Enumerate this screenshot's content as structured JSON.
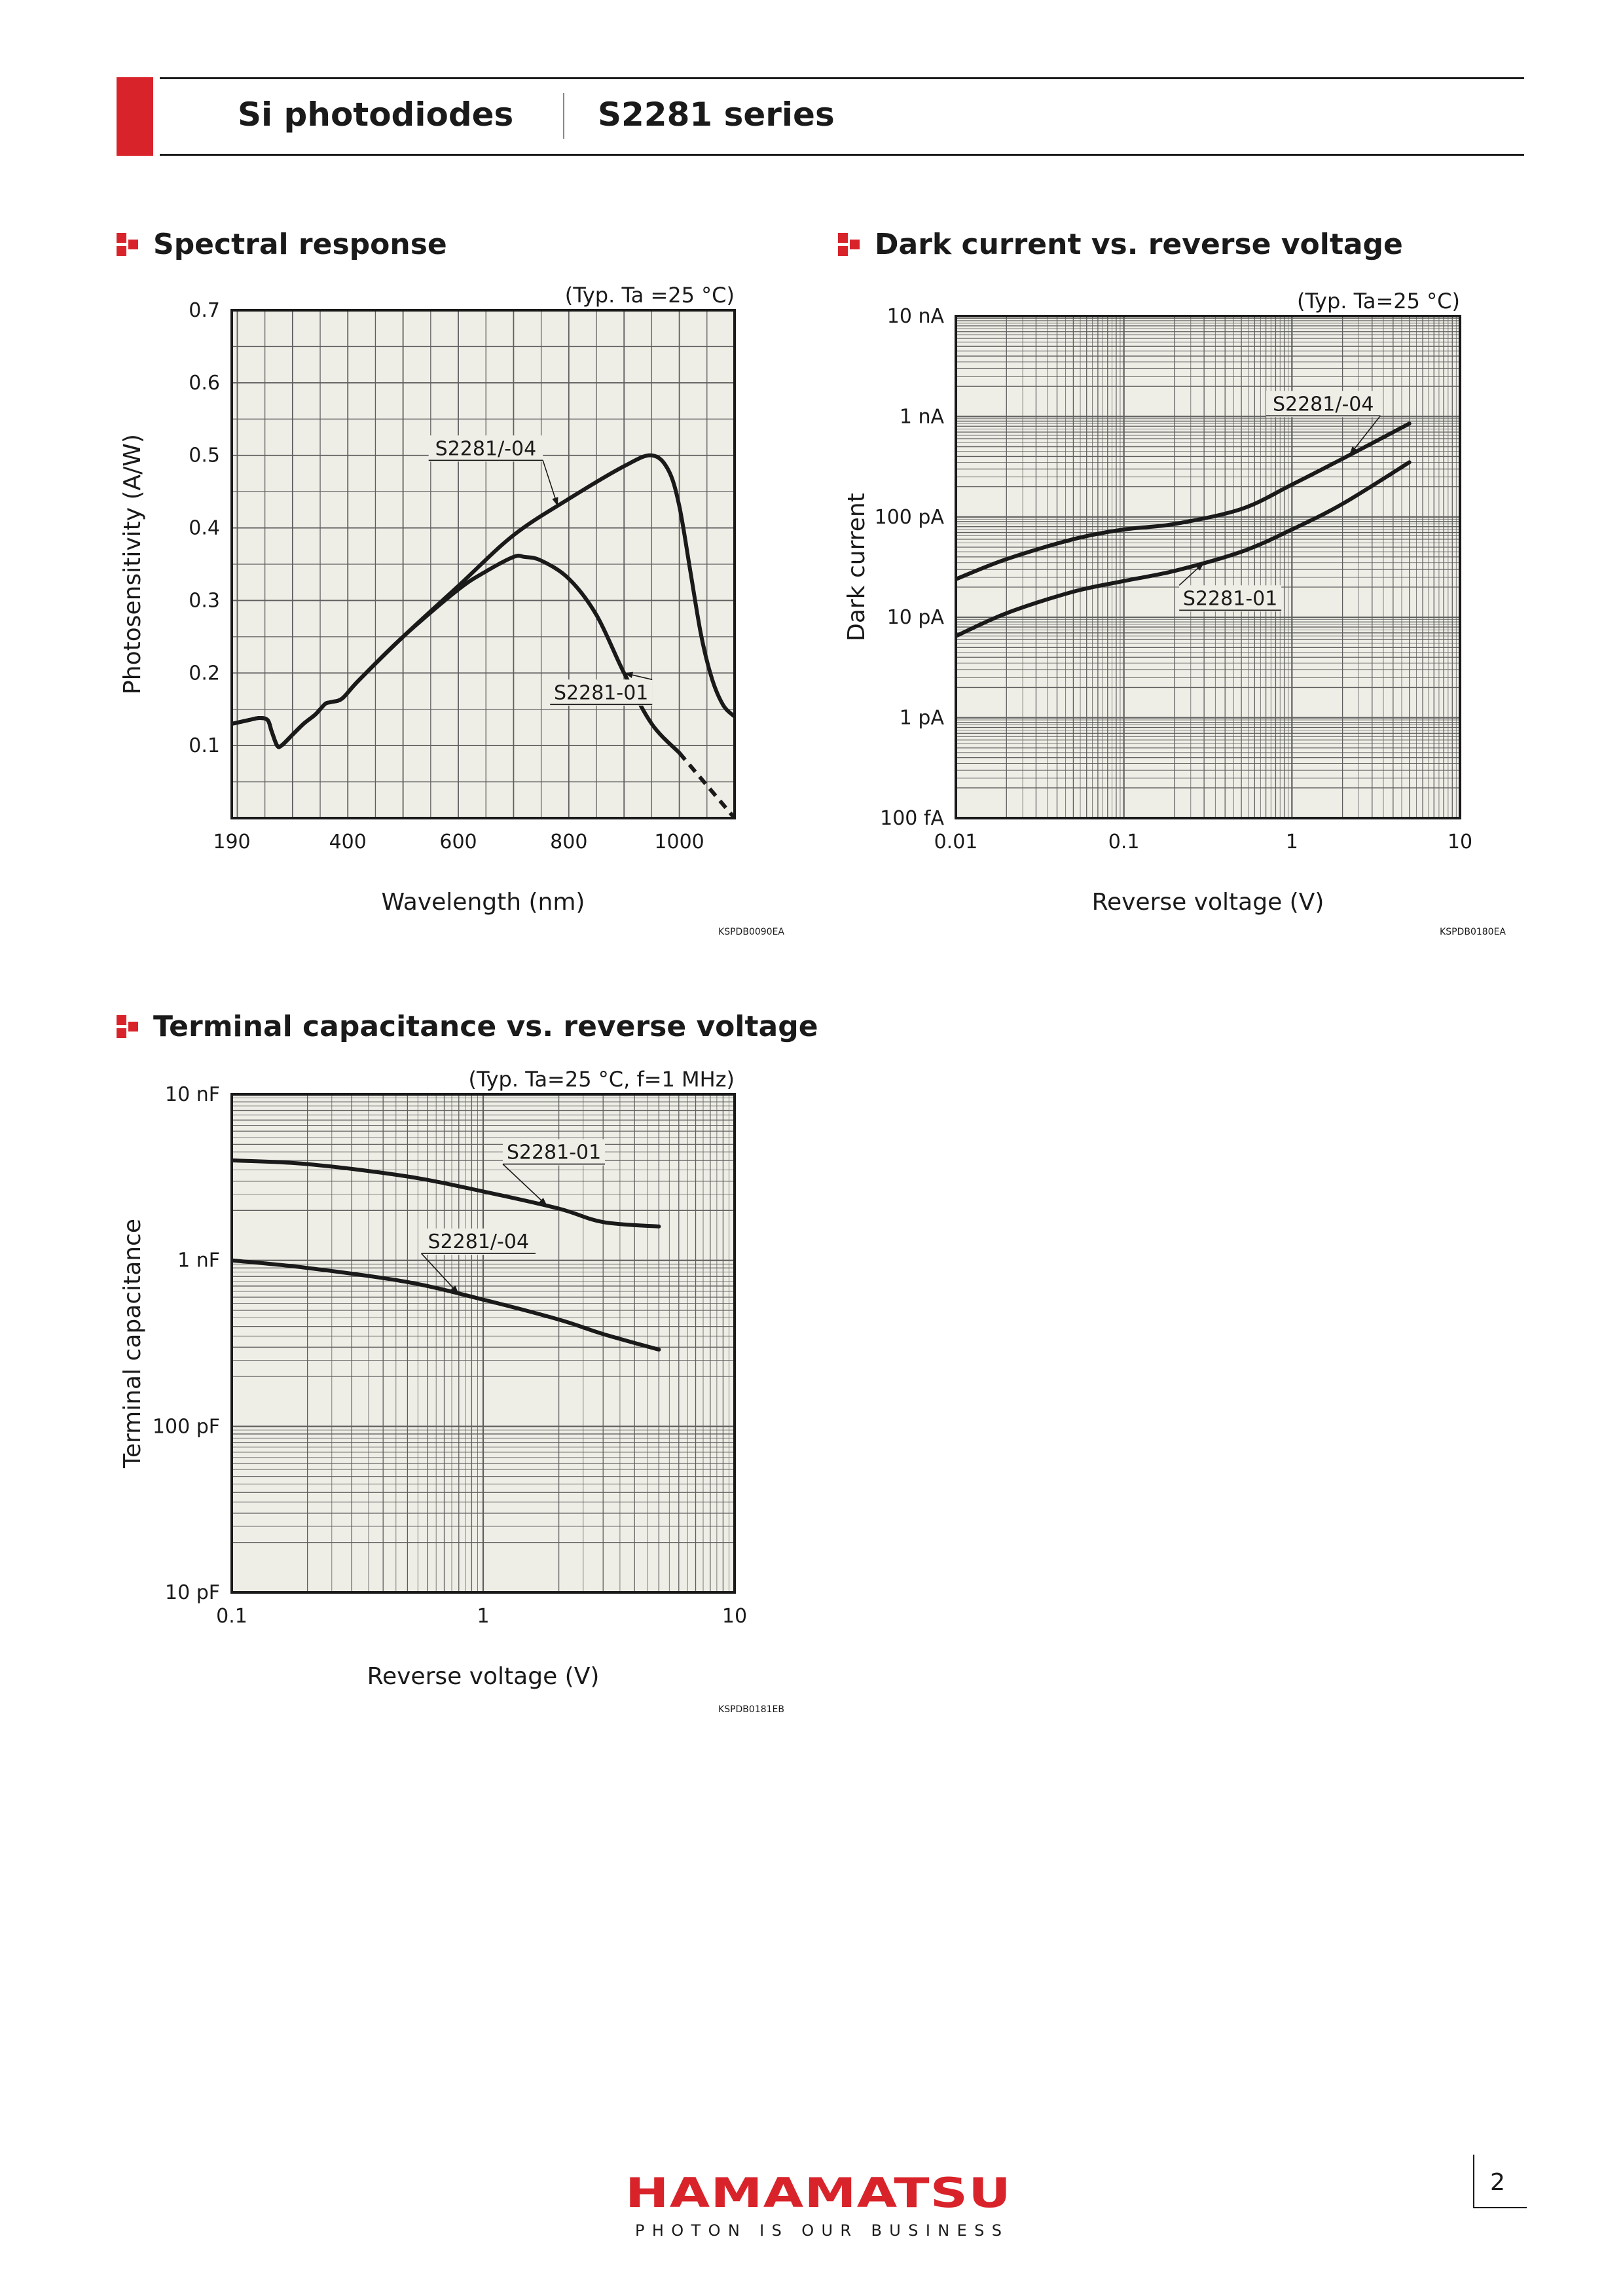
{
  "header": {
    "product": "Si photodiodes",
    "series": "S2281 series"
  },
  "footer": {
    "brand": "HAMAMATSU",
    "tagline": "PHOTON IS OUR BUSINESS",
    "page_number": "2"
  },
  "colors": {
    "accent": "#d9232a",
    "plot_bg": "#efeee6",
    "grid": "#5f5f5f",
    "curve": "#1a1a1a"
  },
  "sections": {
    "spectral": {
      "title": "Spectral response",
      "code": "KSPDB0090EA"
    },
    "dark": {
      "title": "Dark current vs. reverse voltage",
      "code": "KSPDB0180EA"
    },
    "cap": {
      "title": "Terminal capacitance vs. reverse voltage",
      "code": "KSPDB0181EB"
    }
  },
  "chart_data": [
    {
      "id": "spectral",
      "type": "line",
      "condition": "(Typ. Ta =25 °C)",
      "xlabel": "Wavelength (nm)",
      "ylabel": "Photosensitivity (A/W)",
      "xlim": [
        190,
        1100
      ],
      "ylim": [
        0,
        0.7
      ],
      "xticks": [
        190,
        400,
        600,
        800,
        1000
      ],
      "xtick_labels": [
        "190",
        "400",
        "600",
        "800",
        "1000"
      ],
      "yticks": [
        0.1,
        0.2,
        0.3,
        0.4,
        0.5,
        0.6,
        0.7
      ],
      "ytick_labels": [
        "0.1",
        "0.2",
        "0.3",
        "0.4",
        "0.5",
        "0.6",
        "0.7"
      ],
      "grid": true,
      "series": [
        {
          "name": "S2281/-04",
          "x": [
            190,
            220,
            240,
            255,
            262,
            272,
            280,
            300,
            320,
            340,
            350,
            360,
            370,
            390,
            420,
            500,
            600,
            700,
            800,
            900,
            950,
            980,
            1000,
            1020,
            1040,
            1060,
            1080,
            1100
          ],
          "y": [
            0.13,
            0.135,
            0.138,
            0.135,
            0.12,
            0.1,
            0.1,
            0.115,
            0.13,
            0.142,
            0.15,
            0.158,
            0.16,
            0.165,
            0.19,
            0.25,
            0.32,
            0.39,
            0.44,
            0.485,
            0.5,
            0.48,
            0.43,
            0.34,
            0.25,
            0.19,
            0.155,
            0.14
          ],
          "dashed_from": null
        },
        {
          "name": "S2281-01",
          "x": [
            190,
            220,
            240,
            255,
            262,
            272,
            280,
            300,
            320,
            340,
            350,
            360,
            370,
            390,
            420,
            500,
            600,
            650,
            700,
            720,
            750,
            800,
            850,
            900,
            950,
            1000,
            1050,
            1100
          ],
          "y": [
            0.13,
            0.135,
            0.138,
            0.135,
            0.12,
            0.1,
            0.1,
            0.115,
            0.13,
            0.142,
            0.15,
            0.158,
            0.16,
            0.165,
            0.19,
            0.25,
            0.315,
            0.34,
            0.36,
            0.36,
            0.355,
            0.33,
            0.28,
            0.2,
            0.13,
            0.09,
            0.045,
            0.0
          ],
          "dashed_from": 1000
        }
      ],
      "annotations": [
        {
          "text": "S2281/-04",
          "series": "S2281/-04",
          "at_x": 780
        },
        {
          "text": "S2281-01",
          "series": "S2281-01",
          "at_x": 900
        }
      ]
    },
    {
      "id": "dark",
      "type": "line",
      "condition": "(Typ. Ta=25 °C)",
      "xlabel": "Reverse voltage (V)",
      "ylabel": "Dark current",
      "xscale": "log",
      "yscale": "log",
      "xlim": [
        0.01,
        10
      ],
      "ylim": [
        1e-13,
        1e-08
      ],
      "xticks": [
        0.01,
        0.1,
        1,
        10
      ],
      "xtick_labels": [
        "0.01",
        "0.1",
        "1",
        "10"
      ],
      "yticks": [
        1e-13,
        1e-12,
        1e-11,
        1e-10,
        1e-09,
        1e-08
      ],
      "ytick_labels": [
        "100 fA",
        "1 pA",
        "10 pA",
        "100 pA",
        "1 nA",
        "10 nA"
      ],
      "grid": true,
      "series": [
        {
          "name": "S2281/-04",
          "x": [
            0.01,
            0.02,
            0.05,
            0.1,
            0.2,
            0.5,
            1,
            2,
            5
          ],
          "y": [
            2.4e-11,
            3.8e-11,
            6e-11,
            7.5e-11,
            8.5e-11,
            1.2e-10,
            2.1e-10,
            3.8e-10,
            8.5e-10
          ]
        },
        {
          "name": "S2281-01",
          "x": [
            0.01,
            0.02,
            0.05,
            0.1,
            0.2,
            0.5,
            1,
            2,
            5
          ],
          "y": [
            6.5e-12,
            1.1e-11,
            1.8e-11,
            2.3e-11,
            2.9e-11,
            4.5e-11,
            7.5e-11,
            1.35e-10,
            3.5e-10
          ]
        }
      ],
      "annotations": [
        {
          "text": "S2281/-04",
          "series": "S2281/-04",
          "at_x": 2.2
        },
        {
          "text": "S2281-01",
          "series": "S2281-01",
          "at_x": 0.3
        }
      ]
    },
    {
      "id": "cap",
      "type": "line",
      "condition": "(Typ. Ta=25 °C, f=1 MHz)",
      "xlabel": "Reverse voltage (V)",
      "ylabel": "Terminal capacitance",
      "xscale": "log",
      "yscale": "log",
      "xlim": [
        0.1,
        10
      ],
      "ylim": [
        1e-11,
        1e-08
      ],
      "xticks": [
        0.1,
        1,
        10
      ],
      "xtick_labels": [
        "0.1",
        "1",
        "10"
      ],
      "yticks": [
        1e-11,
        1e-10,
        1e-09,
        1e-08
      ],
      "ytick_labels": [
        "10 pF",
        "100 pF",
        "1 nF",
        "10 nF"
      ],
      "grid": true,
      "series": [
        {
          "name": "S2281-01",
          "x": [
            0.1,
            0.2,
            0.5,
            1,
            2,
            3,
            5
          ],
          "y": [
            4e-09,
            3.8e-09,
            3.2e-09,
            2.6e-09,
            2.05e-09,
            1.7e-09,
            1.6e-09
          ]
        },
        {
          "name": "S2281/-04",
          "x": [
            0.1,
            0.2,
            0.5,
            1,
            2,
            3,
            5
          ],
          "y": [
            1e-09,
            9e-10,
            7.4e-10,
            5.8e-10,
            4.4e-10,
            3.6e-10,
            2.9e-10
          ]
        }
      ],
      "annotations": [
        {
          "text": "S2281-01",
          "series": "S2281-01",
          "at_x": 1.8
        },
        {
          "text": "S2281/-04",
          "series": "S2281/-04",
          "at_x": 0.8
        }
      ]
    }
  ]
}
